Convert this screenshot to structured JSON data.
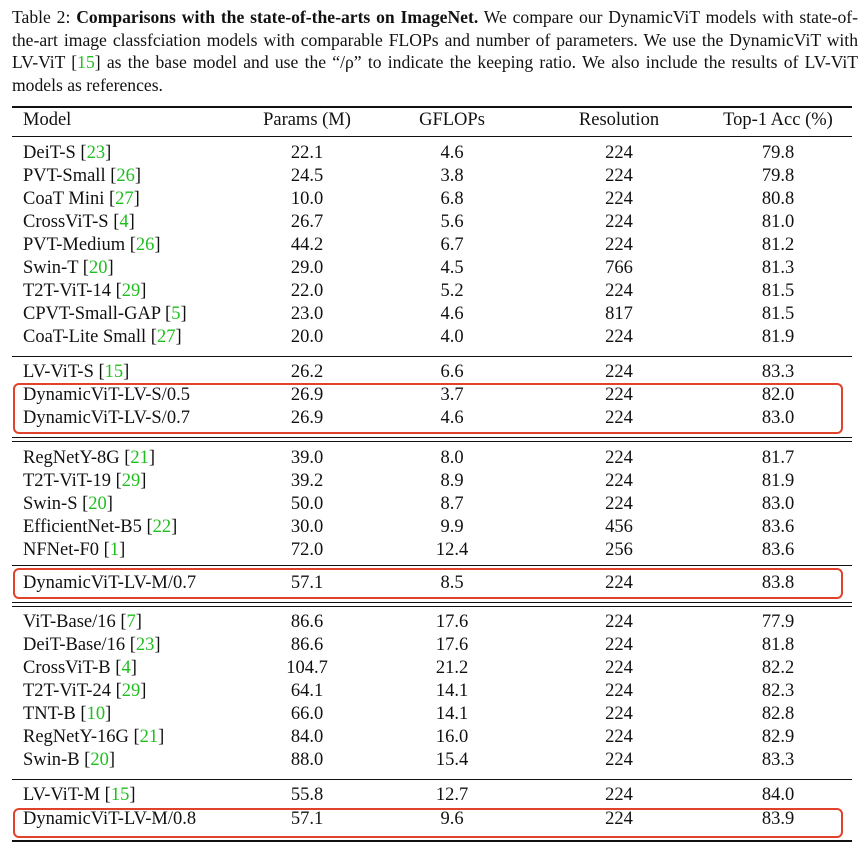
{
  "caption": {
    "label": "Table 2: ",
    "bold_title": "Comparisons with the state-of-the-arts on ImageNet.",
    "text_1": " We compare our DynamicViT models with state-of-the-art image classfciation models with comparable FLOPs and number of parameters. We use the DynamicViT with LV-ViT [",
    "cite": "15",
    "text_2": "] as the base model and use the “/ρ” to indicate the keeping ratio. We also include the results of LV-ViT models as references."
  },
  "table": {
    "headers": [
      "Model",
      "Params (M)",
      "GFLOPs",
      "Resolution",
      "Top-1 Acc (%)"
    ],
    "rows": [
      {
        "name": "DeiT-S [",
        "cite": "23",
        "close": "]",
        "params": "22.1",
        "gflops": "4.6",
        "res": "224",
        "acc": "79.8"
      },
      {
        "name": "PVT-Small [",
        "cite": "26",
        "close": "]",
        "params": "24.5",
        "gflops": "3.8",
        "res": "224",
        "acc": "79.8"
      },
      {
        "name": "CoaT Mini [",
        "cite": "27",
        "close": "]",
        "params": "10.0",
        "gflops": "6.8",
        "res": "224",
        "acc": "80.8"
      },
      {
        "name": "CrossViT-S [",
        "cite": "4",
        "close": "]",
        "params": "26.7",
        "gflops": "5.6",
        "res": "224",
        "acc": "81.0"
      },
      {
        "name": "PVT-Medium [",
        "cite": "26",
        "close": "]",
        "params": "44.2",
        "gflops": "6.7",
        "res": "224",
        "acc": "81.2"
      },
      {
        "name": "Swin-T [",
        "cite": "20",
        "close": "]",
        "params": "29.0",
        "gflops": "4.5",
        "res": "766",
        "acc": "81.3"
      },
      {
        "name": "T2T-ViT-14 [",
        "cite": "29",
        "close": "]",
        "params": "22.0",
        "gflops": "5.2",
        "res": "224",
        "acc": "81.5"
      },
      {
        "name": "CPVT-Small-GAP [",
        "cite": "5",
        "close": "]",
        "params": "23.0",
        "gflops": "4.6",
        "res": "817",
        "acc": "81.5"
      },
      {
        "name": "CoaT-Lite Small [",
        "cite": "27",
        "close": "]",
        "params": "20.0",
        "gflops": "4.0",
        "res": "224",
        "acc": "81.9"
      },
      {
        "name": "LV-ViT-S [",
        "cite": "15",
        "close": "]",
        "params": "26.2",
        "gflops": "6.6",
        "res": "224",
        "acc": "83.3"
      },
      {
        "name": "DynamicViT-LV-S/0.5",
        "cite": "",
        "close": "",
        "params": "26.9",
        "gflops": "3.7",
        "res": "224",
        "acc": "82.0"
      },
      {
        "name": "DynamicViT-LV-S/0.7",
        "cite": "",
        "close": "",
        "params": "26.9",
        "gflops": "4.6",
        "res": "224",
        "acc": "83.0"
      },
      {
        "name": "RegNetY-8G [",
        "cite": "21",
        "close": "]",
        "params": "39.0",
        "gflops": "8.0",
        "res": "224",
        "acc": "81.7"
      },
      {
        "name": "T2T-ViT-19 [",
        "cite": "29",
        "close": "]",
        "params": "39.2",
        "gflops": "8.9",
        "res": "224",
        "acc": "81.9"
      },
      {
        "name": "Swin-S [",
        "cite": "20",
        "close": "]",
        "params": "50.0",
        "gflops": "8.7",
        "res": "224",
        "acc": "83.0"
      },
      {
        "name": "EfficientNet-B5 [",
        "cite": "22",
        "close": "]",
        "params": "30.0",
        "gflops": "9.9",
        "res": "456",
        "acc": "83.6"
      },
      {
        "name": "NFNet-F0 [",
        "cite": "1",
        "close": "]",
        "params": "72.0",
        "gflops": "12.4",
        "res": "256",
        "acc": "83.6"
      },
      {
        "name": "DynamicViT-LV-M/0.7",
        "cite": "",
        "close": "",
        "params": "57.1",
        "gflops": "8.5",
        "res": "224",
        "acc": "83.8"
      },
      {
        "name": "ViT-Base/16 [",
        "cite": "7",
        "close": "]",
        "params": "86.6",
        "gflops": "17.6",
        "res": "224",
        "acc": "77.9"
      },
      {
        "name": "DeiT-Base/16 [",
        "cite": "23",
        "close": "]",
        "params": "86.6",
        "gflops": "17.6",
        "res": "224",
        "acc": "81.8"
      },
      {
        "name": "CrossViT-B [",
        "cite": "4",
        "close": "]",
        "params": "104.7",
        "gflops": "21.2",
        "res": "224",
        "acc": "82.2"
      },
      {
        "name": "T2T-ViT-24 [",
        "cite": "29",
        "close": "]",
        "params": "64.1",
        "gflops": "14.1",
        "res": "224",
        "acc": "82.3"
      },
      {
        "name": "TNT-B [",
        "cite": "10",
        "close": "]",
        "params": "66.0",
        "gflops": "14.1",
        "res": "224",
        "acc": "82.8"
      },
      {
        "name": "RegNetY-16G [",
        "cite": "21",
        "close": "]",
        "params": "84.0",
        "gflops": "16.0",
        "res": "224",
        "acc": "82.9"
      },
      {
        "name": "Swin-B [",
        "cite": "20",
        "close": "]",
        "params": "88.0",
        "gflops": "15.4",
        "res": "224",
        "acc": "83.3"
      },
      {
        "name": "LV-ViT-M [",
        "cite": "15",
        "close": "]",
        "params": "55.8",
        "gflops": "12.7",
        "res": "224",
        "acc": "84.0"
      },
      {
        "name": "DynamicViT-LV-M/0.8",
        "cite": "",
        "close": "",
        "params": "57.1",
        "gflops": "9.6",
        "res": "224",
        "acc": "83.9"
      }
    ]
  },
  "colors": {
    "citation": "#1fbf1f",
    "highlight_box": "#e0422b"
  }
}
